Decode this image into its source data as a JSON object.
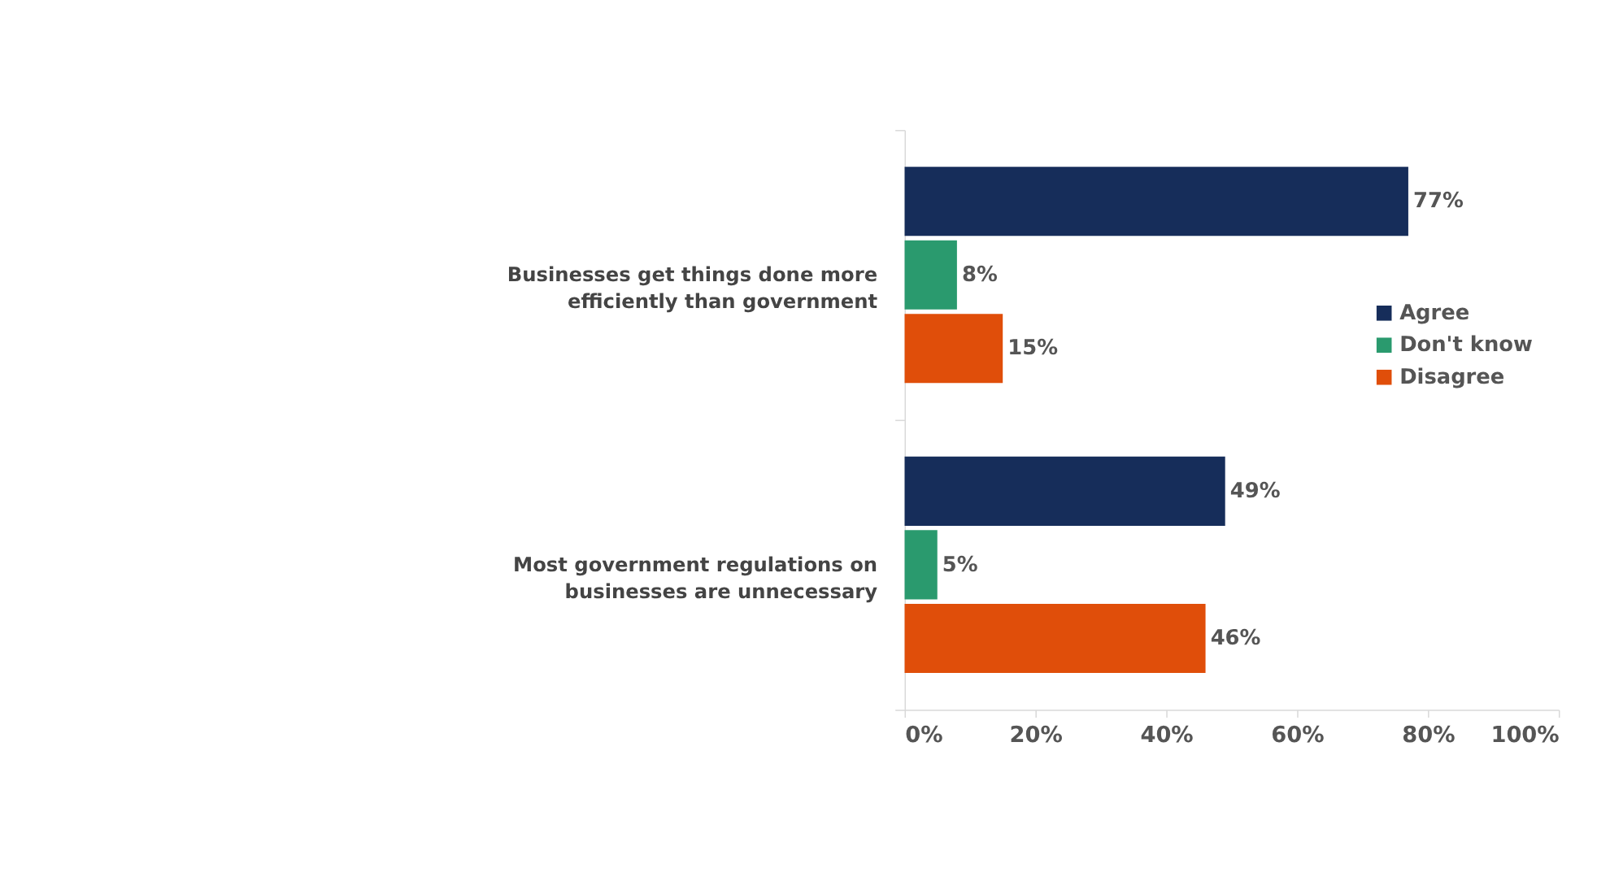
{
  "chart_data": {
    "type": "bar",
    "orientation": "horizontal",
    "categories": [
      "Businesses get things done more efficiently than government",
      "Most government regulations on businesses are unnecessary"
    ],
    "series": [
      {
        "name": "Agree",
        "color": "#162d5a",
        "values": [
          77,
          49
        ],
        "value_labels": [
          "77%",
          "49%"
        ]
      },
      {
        "name": "Don't know",
        "color": "#2a9a6e",
        "values": [
          8,
          5
        ],
        "value_labels": [
          "8%",
          "5%"
        ]
      },
      {
        "name": "Disagree",
        "color": "#e04e0a",
        "values": [
          15,
          46
        ],
        "value_labels": [
          "15%",
          "46%"
        ]
      }
    ],
    "xlim": [
      0,
      100
    ],
    "xticks": [
      {
        "value": 0,
        "label": "0%"
      },
      {
        "value": 20,
        "label": "20%"
      },
      {
        "value": 40,
        "label": "40%"
      },
      {
        "value": 60,
        "label": "60%"
      },
      {
        "value": 80,
        "label": "80%"
      },
      {
        "value": 100,
        "label": "100%"
      }
    ],
    "legend": "right",
    "grid": false
  }
}
